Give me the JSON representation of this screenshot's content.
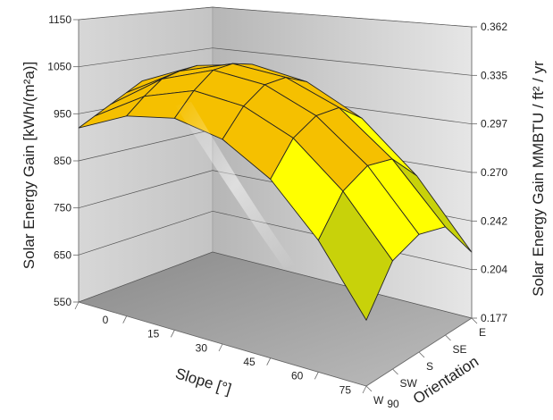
{
  "chart_data": {
    "type": "surface3d",
    "title": "",
    "ylabel_left": "Solar Energy Gain [kWh/(m²a)]",
    "ylabel_right": "Solar Energy Gain MMBTU / ft² / yr",
    "xlabel": "Slope [°]",
    "zlabel": "Orientation",
    "y_ticks_left": [
      "550",
      "650",
      "750",
      "850",
      "950",
      "1050",
      "1150"
    ],
    "y_ticks_right": [
      "0.177",
      "0.204",
      "0.242",
      "0.270",
      "0.297",
      "0.335",
      "0.362"
    ],
    "ylim": [
      550,
      1150
    ],
    "slope_ticks": [
      "0",
      "15",
      "30",
      "45",
      "60",
      "75",
      "90"
    ],
    "orientation_ticks": [
      "E",
      "SE",
      "S",
      "SW",
      "W"
    ],
    "slope_values": [
      0,
      15,
      30,
      45,
      60,
      75,
      90
    ],
    "orientations": [
      "E",
      "SE",
      "S",
      "SW",
      "W"
    ],
    "values": [
      [
        920,
        920,
        920,
        920,
        920
      ],
      [
        975,
        990,
        1000,
        990,
        975
      ],
      [
        1000,
        1030,
        1045,
        1030,
        1000
      ],
      [
        985,
        1025,
        1040,
        1025,
        985
      ],
      [
        930,
        985,
        1000,
        985,
        930
      ],
      [
        830,
        900,
        920,
        900,
        830
      ],
      [
        690,
        780,
        800,
        780,
        690
      ]
    ],
    "color_bands": [
      {
        "from": 550,
        "to": 650,
        "color": "#1a8a8a"
      },
      {
        "from": 650,
        "to": 750,
        "color": "#2ea02e"
      },
      {
        "from": 750,
        "to": 850,
        "color": "#c8d20a"
      },
      {
        "from": 850,
        "to": 950,
        "color": "#ffff00"
      },
      {
        "from": 950,
        "to": 1050,
        "color": "#f5c000"
      },
      {
        "from": 1050,
        "to": 1150,
        "color": "#f07800"
      }
    ],
    "grid": true
  }
}
